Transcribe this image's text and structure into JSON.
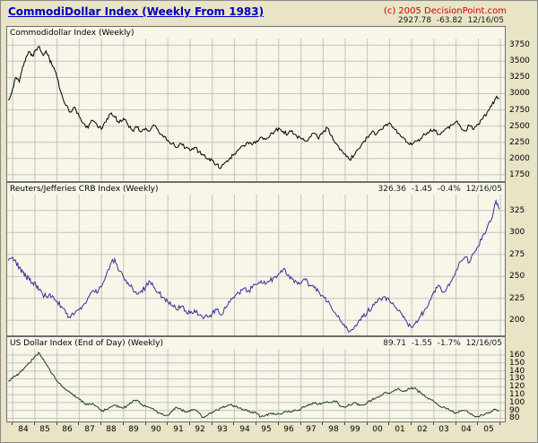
{
  "header": {
    "title": "CommodiDollar Index (Weekly From 1983)",
    "copyright": "(c) 2005 DecisionPoint.com"
  },
  "colors": {
    "background": "#E9E4C6",
    "panel_background": "#F8F6E8",
    "grid": "#C2C2C2",
    "title_blue": "#0000BB",
    "copyright_red": "#CC0000",
    "commodidollar_line": "#000000",
    "crb_line": "#3A2F9A",
    "usd_line": "#1F3D1F"
  },
  "panels": [
    {
      "label": "Commodidollar Index (Weekly)",
      "quote": "2927.78  -63.82  12/16/05"
    },
    {
      "label": "Reuters/Jefferies CRB Index (Weekly)",
      "quote": "326.36  -1.45  -0.4%  12/16/05"
    },
    {
      "label": "US Dollar Index (End of Day) (Weekly)",
      "quote": "89.71  -1.55  -1.7%  12/16/05"
    }
  ],
  "x_axis": {
    "years": [
      "84",
      "85",
      "86",
      "87",
      "88",
      "89",
      "90",
      "91",
      "92",
      "93",
      "94",
      "95",
      "96",
      "97",
      "98",
      "99",
      "00",
      "01",
      "02",
      "03",
      "04",
      "05"
    ],
    "xlim": [
      1983.75,
      2006.2
    ],
    "grid_year_start": 1984,
    "grid_year_end": 2006
  },
  "chart_data": [
    {
      "type": "line",
      "title": "Commodidollar Index (Weekly)",
      "last_value": 2927.78,
      "change": -63.82,
      "date": "12/16/05",
      "color": "#000000",
      "ylim": [
        1650,
        3850
      ],
      "yticks": [
        1750,
        2000,
        2250,
        2500,
        2750,
        3000,
        3250,
        3500,
        3750
      ],
      "noise": 30,
      "x": [
        1983.8,
        1984.0,
        1984.15,
        1984.3,
        1984.45,
        1984.6,
        1984.75,
        1984.9,
        1985.05,
        1985.2,
        1985.35,
        1985.5,
        1985.65,
        1985.8,
        1986.0,
        1986.2,
        1986.4,
        1986.6,
        1986.8,
        1987.0,
        1987.2,
        1987.4,
        1987.6,
        1987.8,
        1988.0,
        1988.2,
        1988.4,
        1988.6,
        1988.8,
        1989.0,
        1989.2,
        1989.4,
        1989.6,
        1989.8,
        1990.0,
        1990.2,
        1990.4,
        1990.6,
        1990.8,
        1991.0,
        1991.2,
        1991.4,
        1991.6,
        1991.8,
        1992.0,
        1992.2,
        1992.4,
        1992.6,
        1992.8,
        1993.0,
        1993.2,
        1993.4,
        1993.6,
        1993.8,
        1994.0,
        1994.2,
        1994.4,
        1994.6,
        1994.8,
        1995.0,
        1995.2,
        1995.4,
        1995.6,
        1995.8,
        1996.0,
        1996.2,
        1996.4,
        1996.6,
        1996.8,
        1997.0,
        1997.2,
        1997.4,
        1997.6,
        1997.8,
        1998.0,
        1998.2,
        1998.4,
        1998.6,
        1998.8,
        1999.0,
        1999.2,
        1999.4,
        1999.6,
        1999.8,
        2000.0,
        2000.2,
        2000.4,
        2000.6,
        2000.8,
        2001.0,
        2001.2,
        2001.4,
        2001.6,
        2001.8,
        2002.0,
        2002.2,
        2002.4,
        2002.6,
        2002.8,
        2003.0,
        2003.2,
        2003.4,
        2003.6,
        2003.8,
        2004.0,
        2004.2,
        2004.4,
        2004.6,
        2004.8,
        2005.0,
        2005.2,
        2005.4,
        2005.6,
        2005.8,
        2005.95
      ],
      "values": [
        2900,
        3080,
        3250,
        3180,
        3420,
        3560,
        3650,
        3580,
        3680,
        3730,
        3600,
        3660,
        3540,
        3420,
        3250,
        3000,
        2820,
        2720,
        2790,
        2650,
        2540,
        2470,
        2590,
        2520,
        2450,
        2560,
        2690,
        2640,
        2550,
        2620,
        2520,
        2430,
        2480,
        2410,
        2470,
        2430,
        2510,
        2400,
        2330,
        2280,
        2230,
        2170,
        2230,
        2160,
        2120,
        2170,
        2100,
        2050,
        1990,
        1970,
        1910,
        1860,
        1940,
        2010,
        2070,
        2140,
        2200,
        2250,
        2210,
        2270,
        2330,
        2290,
        2350,
        2410,
        2470,
        2420,
        2370,
        2430,
        2350,
        2310,
        2270,
        2330,
        2390,
        2300,
        2410,
        2470,
        2350,
        2230,
        2140,
        2070,
        1980,
        2050,
        2150,
        2250,
        2330,
        2410,
        2370,
        2450,
        2510,
        2550,
        2470,
        2390,
        2330,
        2250,
        2210,
        2270,
        2310,
        2370,
        2410,
        2450,
        2370,
        2410,
        2470,
        2520,
        2570,
        2490,
        2430,
        2510,
        2450,
        2530,
        2610,
        2710,
        2810,
        2940,
        2928
      ]
    },
    {
      "type": "line",
      "title": "Reuters/Jefferies CRB Index (Weekly)",
      "last_value": 326.36,
      "change": -1.45,
      "change_pct": "-0.4%",
      "date": "12/16/05",
      "color": "#3A2F9A",
      "ylim": [
        183,
        343
      ],
      "yticks": [
        200,
        225,
        250,
        275,
        300,
        325
      ],
      "noise": 3,
      "x": [
        1983.8,
        1984.0,
        1984.15,
        1984.3,
        1984.45,
        1984.6,
        1984.75,
        1984.9,
        1985.05,
        1985.2,
        1985.35,
        1985.5,
        1985.65,
        1985.8,
        1986.0,
        1986.2,
        1986.4,
        1986.6,
        1986.8,
        1987.0,
        1987.2,
        1987.4,
        1987.6,
        1987.8,
        1988.0,
        1988.2,
        1988.4,
        1988.6,
        1988.8,
        1989.0,
        1989.2,
        1989.4,
        1989.6,
        1989.8,
        1990.0,
        1990.2,
        1990.4,
        1990.6,
        1990.8,
        1991.0,
        1991.2,
        1991.4,
        1991.6,
        1991.8,
        1992.0,
        1992.2,
        1992.4,
        1992.6,
        1992.8,
        1993.0,
        1993.2,
        1993.4,
        1993.6,
        1993.8,
        1994.0,
        1994.2,
        1994.4,
        1994.6,
        1994.8,
        1995.0,
        1995.2,
        1995.4,
        1995.6,
        1995.8,
        1996.0,
        1996.2,
        1996.4,
        1996.6,
        1996.8,
        1997.0,
        1997.2,
        1997.4,
        1997.6,
        1997.8,
        1998.0,
        1998.2,
        1998.4,
        1998.6,
        1998.8,
        1999.0,
        1999.2,
        1999.4,
        1999.6,
        1999.8,
        2000.0,
        2000.2,
        2000.4,
        2000.6,
        2000.8,
        2001.0,
        2001.2,
        2001.4,
        2001.6,
        2001.8,
        2002.0,
        2002.2,
        2002.4,
        2002.6,
        2002.8,
        2003.0,
        2003.2,
        2003.4,
        2003.6,
        2003.8,
        2004.0,
        2004.2,
        2004.4,
        2004.6,
        2004.8,
        2005.0,
        2005.2,
        2005.4,
        2005.6,
        2005.8,
        2005.95
      ],
      "values": [
        268,
        272,
        266,
        260,
        255,
        250,
        246,
        243,
        240,
        235,
        230,
        227,
        230,
        228,
        222,
        216,
        208,
        203,
        208,
        212,
        218,
        226,
        234,
        231,
        238,
        250,
        263,
        270,
        256,
        249,
        243,
        237,
        230,
        234,
        238,
        244,
        237,
        231,
        226,
        221,
        217,
        212,
        216,
        211,
        208,
        212,
        206,
        202,
        204,
        208,
        212,
        206,
        214,
        221,
        226,
        231,
        236,
        233,
        237,
        241,
        245,
        241,
        245,
        249,
        253,
        258,
        251,
        247,
        244,
        242,
        246,
        240,
        237,
        233,
        228,
        221,
        213,
        206,
        199,
        192,
        187,
        192,
        199,
        204,
        210,
        214,
        220,
        224,
        227,
        222,
        217,
        211,
        204,
        197,
        192,
        199,
        205,
        213,
        222,
        233,
        240,
        232,
        238,
        245,
        257,
        267,
        272,
        266,
        276,
        284,
        296,
        305,
        315,
        336,
        326.4
      ]
    },
    {
      "type": "line",
      "title": "US Dollar Index (End of Day) (Weekly)",
      "last_value": 89.71,
      "change": -1.55,
      "change_pct": "-1.7%",
      "date": "12/16/05",
      "color": "#1F3D1F",
      "ylim": [
        76,
        168
      ],
      "yticks": [
        80,
        90,
        100,
        110,
        120,
        130,
        140,
        150,
        160
      ],
      "noise": 1.5,
      "x": [
        1983.8,
        1984.0,
        1984.15,
        1984.3,
        1984.45,
        1984.6,
        1984.75,
        1984.9,
        1985.05,
        1985.2,
        1985.35,
        1985.5,
        1985.65,
        1985.8,
        1986.0,
        1986.2,
        1986.4,
        1986.6,
        1986.8,
        1987.0,
        1987.2,
        1987.4,
        1987.6,
        1987.8,
        1988.0,
        1988.2,
        1988.4,
        1988.6,
        1988.8,
        1989.0,
        1989.2,
        1989.4,
        1989.6,
        1989.8,
        1990.0,
        1990.2,
        1990.4,
        1990.6,
        1990.8,
        1991.0,
        1991.2,
        1991.4,
        1991.6,
        1991.8,
        1992.0,
        1992.2,
        1992.4,
        1992.6,
        1992.8,
        1993.0,
        1993.2,
        1993.4,
        1993.6,
        1993.8,
        1994.0,
        1994.2,
        1994.4,
        1994.6,
        1994.8,
        1995.0,
        1995.2,
        1995.4,
        1995.6,
        1995.8,
        1996.0,
        1996.2,
        1996.4,
        1996.6,
        1996.8,
        1997.0,
        1997.2,
        1997.4,
        1997.6,
        1997.8,
        1998.0,
        1998.2,
        1998.4,
        1998.6,
        1998.8,
        1999.0,
        1999.2,
        1999.4,
        1999.6,
        1999.8,
        2000.0,
        2000.2,
        2000.4,
        2000.6,
        2000.8,
        2001.0,
        2001.2,
        2001.4,
        2001.6,
        2001.8,
        2002.0,
        2002.2,
        2002.4,
        2002.6,
        2002.8,
        2003.0,
        2003.2,
        2003.4,
        2003.6,
        2003.8,
        2004.0,
        2004.2,
        2004.4,
        2004.6,
        2004.8,
        2005.0,
        2005.2,
        2005.4,
        2005.6,
        2005.8,
        2005.95
      ],
      "values": [
        127,
        131,
        134,
        137,
        141,
        146,
        150,
        155,
        160,
        163,
        155,
        149,
        143,
        136,
        127,
        121,
        116,
        112,
        109,
        104,
        100,
        97,
        99,
        95,
        89,
        91,
        94,
        97,
        94,
        93,
        97,
        101,
        103,
        98,
        95,
        93,
        90,
        87,
        84,
        84,
        89,
        94,
        91,
        88,
        89,
        91,
        87,
        81,
        84,
        88,
        91,
        93,
        95,
        97,
        96,
        93,
        91,
        89,
        88,
        86,
        82,
        84,
        86,
        85,
        86,
        87,
        88,
        89,
        90,
        92,
        95,
        97,
        99,
        98,
        100,
        101,
        100,
        102,
        95,
        94,
        97,
        100,
        98,
        97,
        100,
        103,
        106,
        109,
        113,
        112,
        115,
        118,
        114,
        116,
        119,
        117,
        112,
        108,
        105,
        101,
        97,
        94,
        92,
        89,
        87,
        89,
        90,
        87,
        83,
        82,
        84,
        87,
        89,
        91,
        89.7
      ]
    }
  ]
}
